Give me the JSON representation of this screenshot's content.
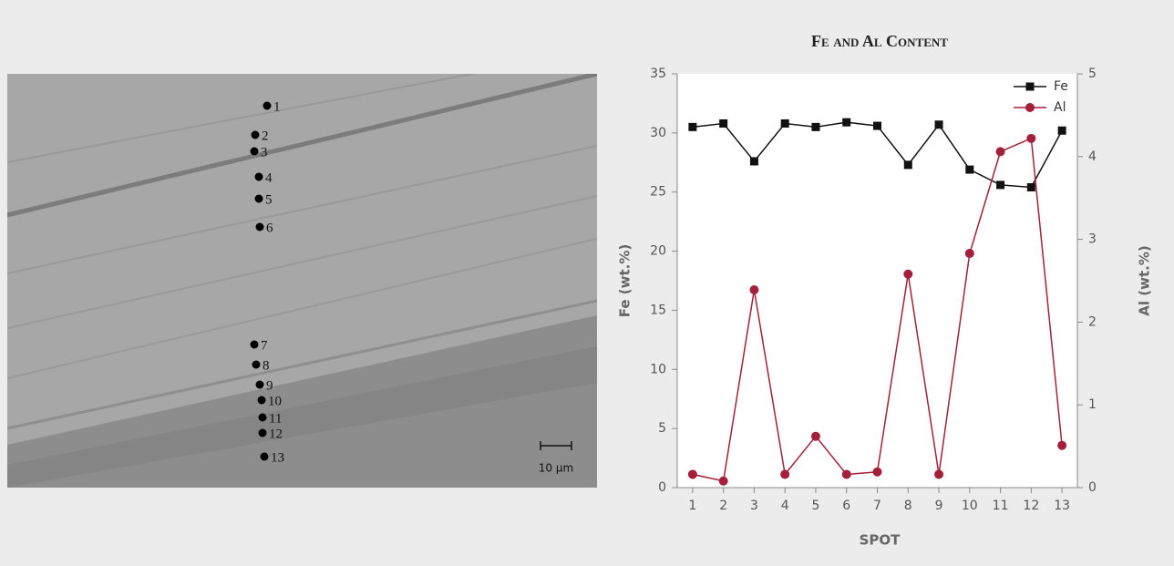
{
  "image": {
    "spots": [
      "1",
      "2",
      "3",
      "4",
      "5",
      "6",
      "7",
      "8",
      "9",
      "10",
      "11",
      "12",
      "13"
    ],
    "scale_bar": "10 μm"
  },
  "chart_data": {
    "type": "line",
    "title": "Fe and Al Content",
    "x_label": "SPOT",
    "y_label": "Fe (wt.%)",
    "y2_label": "Al (wt.%)",
    "categories": [
      "1",
      "2",
      "3",
      "4",
      "5",
      "6",
      "7",
      "8",
      "9",
      "10",
      "11",
      "12",
      "13"
    ],
    "series": [
      {
        "name": "Fe",
        "color": "#111111",
        "marker": "square",
        "values": [
          30.5,
          30.8,
          27.6,
          30.8,
          30.5,
          30.9,
          30.6,
          27.3,
          30.7,
          26.9,
          25.6,
          25.4,
          30.2
        ]
      },
      {
        "name": "Al",
        "color": "#a31f3a",
        "marker": "circle",
        "axis": "y2",
        "values": [
          0.16,
          0.08,
          2.39,
          0.16,
          0.62,
          0.16,
          0.19,
          2.58,
          0.16,
          2.83,
          4.06,
          4.22,
          0.51
        ]
      }
    ],
    "ylim": [
      0,
      35
    ],
    "yticks": [
      0,
      5,
      10,
      15,
      20,
      25,
      30,
      35
    ],
    "y2lim": [
      0,
      5
    ],
    "y2ticks": [
      0,
      1,
      2,
      3,
      4,
      5
    ],
    "legend": "top-right",
    "grid": false
  }
}
